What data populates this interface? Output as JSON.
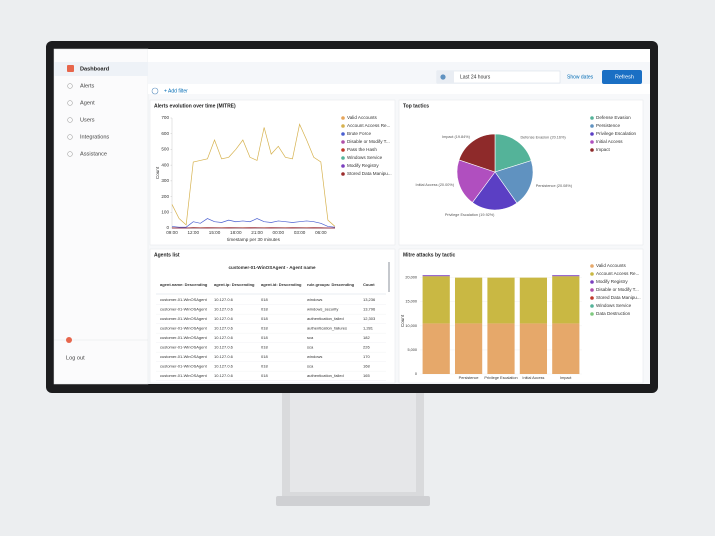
{
  "sidebar": {
    "items": [
      "Dashboard",
      "Alerts",
      "Agent",
      "Users",
      "Integrations",
      "Assistance"
    ],
    "logout": "Log out"
  },
  "toolbar": {
    "add_filter": "+ Add filter",
    "time_range": "Last 24 hours",
    "show_dates": "Show dates",
    "refresh": "Refresh"
  },
  "chart_data": [
    {
      "type": "line",
      "title": "Alerts evolution over time (MITRE)",
      "x_label": "timestamp per 30 minutes",
      "y_label": "Count",
      "categories": [
        "09:00",
        null,
        null,
        "12:00",
        null,
        null,
        "15:00",
        null,
        null,
        "18:00",
        null,
        null,
        "21:00",
        null,
        null,
        "00:00",
        null,
        null,
        "03:00",
        null,
        null,
        "06:00",
        null,
        null
      ],
      "ylim": [
        0,
        700
      ],
      "yticks": [
        0,
        100,
        200,
        300,
        400,
        500,
        600,
        700
      ],
      "grid": false,
      "series": [
        {
          "name": "Valid Accounts",
          "color": "#e7a55a",
          "values": [
            2,
            1,
            1,
            3,
            2,
            3,
            2,
            2,
            3,
            2,
            2,
            3,
            2,
            2,
            3,
            2,
            2,
            3,
            2,
            2,
            3,
            2,
            1,
            1
          ]
        },
        {
          "name": "Account Access Re...",
          "color": "#d6b24f",
          "values": [
            150,
            60,
            20,
            420,
            430,
            440,
            560,
            440,
            450,
            500,
            560,
            450,
            430,
            640,
            470,
            520,
            450,
            440,
            660,
            560,
            450,
            420,
            50,
            10
          ]
        },
        {
          "name": "Brute Force",
          "color": "#4a5fd0",
          "values": [
            10,
            5,
            5,
            40,
            30,
            60,
            40,
            35,
            50,
            40,
            45,
            40,
            60,
            40,
            35,
            45,
            40,
            35,
            40,
            45,
            40,
            30,
            10,
            5
          ]
        },
        {
          "name": "Disable or Modify T...",
          "color": "#b04fa8",
          "values": [
            1,
            0,
            0,
            2,
            1,
            2,
            1,
            1,
            2,
            1,
            1,
            2,
            1,
            1,
            2,
            1,
            1,
            2,
            1,
            1,
            2,
            1,
            0,
            0
          ]
        },
        {
          "name": "Pass the Hash",
          "color": "#c0392b",
          "values": [
            0,
            0,
            0,
            1,
            1,
            1,
            1,
            1,
            1,
            1,
            1,
            1,
            1,
            1,
            1,
            1,
            1,
            1,
            1,
            1,
            1,
            1,
            0,
            0
          ]
        },
        {
          "name": "Windows Service",
          "color": "#54b399",
          "values": [
            0,
            0,
            0,
            1,
            0,
            1,
            0,
            1,
            0,
            1,
            0,
            1,
            0,
            1,
            0,
            1,
            0,
            1,
            0,
            1,
            0,
            1,
            0,
            0
          ]
        },
        {
          "name": "Modify Registry",
          "color": "#7b3fbf",
          "values": [
            0,
            0,
            0,
            2,
            1,
            1,
            2,
            1,
            1,
            2,
            1,
            1,
            2,
            1,
            1,
            2,
            1,
            1,
            2,
            1,
            1,
            2,
            0,
            0
          ]
        },
        {
          "name": "Stored Data Manipu...",
          "color": "#9b2c2c",
          "values": [
            0,
            0,
            0,
            1,
            1,
            0,
            1,
            1,
            0,
            1,
            1,
            0,
            1,
            1,
            0,
            1,
            1,
            0,
            1,
            1,
            0,
            1,
            0,
            0
          ]
        }
      ]
    },
    {
      "type": "pie",
      "title": "Top tactics",
      "categories": [
        "Defense Evasion",
        "Persistence",
        "Privilege Escalation",
        "Initial Access",
        "Impact"
      ],
      "values": [
        20.16,
        20.08,
        19.92,
        20.0,
        19.84
      ],
      "value_labels": [
        "Defense Evasion (20.16%)",
        "Persistence (20.08%)",
        "Privilege Escalation (19.92%)",
        "Initial Access (20.00%)",
        "Impact (19.84%)"
      ],
      "colors": [
        "#54b399",
        "#6092c0",
        "#5b3fc4",
        "#b04fbf",
        "#8e2a2a"
      ]
    },
    {
      "type": "bar",
      "stacked": true,
      "title": "Mitre attacks by tactic",
      "y_label": "Count",
      "categories": [
        null,
        "Persistence",
        "Privilege Escalation",
        "Initial Access",
        "Impact"
      ],
      "ylim": [
        0,
        22000
      ],
      "yticks": [
        0,
        {
          "value": 5000,
          "label": "5,000"
        },
        {
          "value": 10000,
          "label": "10,000"
        },
        {
          "value": 15000,
          "label": "15,000"
        },
        {
          "value": 20000,
          "label": "20,000"
        }
      ],
      "series": [
        {
          "name": "Valid Accounts",
          "color": "#e6a86a",
          "values": [
            10500,
            10500,
            10500,
            10500,
            10500
          ]
        },
        {
          "name": "Account Access Re...",
          "color": "#c9b843",
          "values": [
            9800,
            9500,
            9500,
            9500,
            9800
          ]
        },
        {
          "name": "Modify Registry",
          "color": "#7b3fbf",
          "values": [
            200,
            0,
            0,
            0,
            200
          ]
        },
        {
          "name": "Disable or Modify T...",
          "color": "#b04fa8",
          "values": [
            0,
            0,
            0,
            0,
            0
          ]
        },
        {
          "name": "Stored Data Manipu...",
          "color": "#c0392b",
          "values": [
            0,
            0,
            0,
            0,
            0
          ]
        },
        {
          "name": "Windows Service",
          "color": "#54b399",
          "values": [
            0,
            0,
            0,
            0,
            0
          ]
        },
        {
          "name": "Data Destruction",
          "color": "#7fc97f",
          "values": [
            0,
            0,
            0,
            0,
            0
          ]
        }
      ]
    }
  ],
  "table": {
    "title": "Agents list",
    "subtitle": "customer-01-WinOSAgent - Agent name",
    "columns": [
      "agent.name: Descending",
      "agent.ip: Descending",
      "agent.id: Descending",
      "rule.groups: Descending",
      "Count"
    ],
    "rows": [
      [
        "customer-01-WinOSAgent",
        "10.127.0.6",
        "018",
        "windows",
        "13,236"
      ],
      [
        "customer-01-WinOSAgent",
        "10.127.0.6",
        "018",
        "windows_security",
        "13,796"
      ],
      [
        "customer-01-WinOSAgent",
        "10.127.0.6",
        "018",
        "authentication_failed",
        "12,303"
      ],
      [
        "customer-01-WinOSAgent",
        "10.127.0.6",
        "018",
        "authentication_failures",
        "1,281"
      ],
      [
        "customer-01-WinOSAgent",
        "10.127.0.6",
        "018",
        "sca",
        "182"
      ],
      [
        "customer-01-WinOSAgent",
        "10.127.0.6",
        "018",
        "sca",
        "226"
      ],
      [
        "customer-01-WinOSAgent",
        "10.127.0.6",
        "018",
        "windows",
        "170"
      ],
      [
        "customer-01-WinOSAgent",
        "10.127.0.6",
        "018",
        "sca",
        "168"
      ],
      [
        "customer-01-WinOSAgent",
        "10.127.0.6",
        "018",
        "authentication_failed",
        "165"
      ]
    ]
  }
}
